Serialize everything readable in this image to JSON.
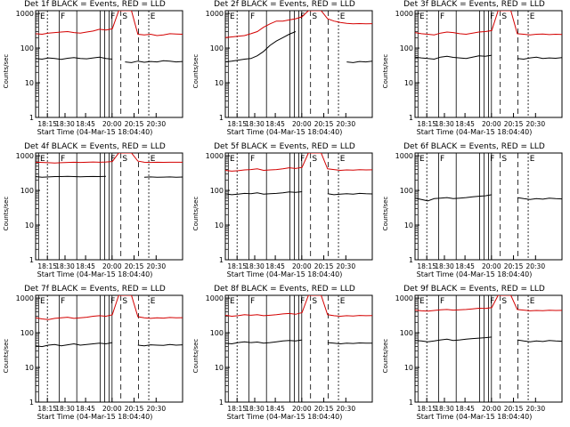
{
  "chart_data": [
    {
      "type": "line",
      "title": "Det 1f BLACK = Events, RED = LLD",
      "xlabel": "Start Time (04-Mar-15 18:04:40)",
      "ylabel": "Counts/sec",
      "x_ticks": [
        "18:15",
        "18:30",
        "18:45",
        "20:00",
        "20:15",
        "20:30"
      ],
      "y_ticks": [
        "1",
        "10",
        "100",
        "1000"
      ],
      "ylim": [
        1,
        1200
      ],
      "yscale": "log",
      "series": [
        {
          "color": "#000000",
          "values": [
            50,
            48,
            52,
            50,
            47,
            51,
            53,
            50,
            49,
            52,
            55,
            50,
            48,
            null,
            40,
            38,
            42,
            39,
            41,
            40,
            43,
            42,
            40,
            41
          ]
        },
        {
          "color": "#d40000",
          "values": [
            260,
            250,
            270,
            280,
            290,
            300,
            280,
            270,
            290,
            310,
            350,
            330,
            360,
            1200,
            1200,
            1200,
            250,
            240,
            250,
            230,
            240,
            260,
            255,
            250
          ]
        }
      ],
      "annotations": [
        "E",
        "F",
        "F",
        "S",
        "E"
      ]
    },
    {
      "type": "line",
      "title": "Det 2f BLACK = Events, RED = LLD",
      "xlabel": "Start Time (04-Mar-15 18:04:40)",
      "ylabel": "Counts/sec",
      "x_ticks": [
        "18:15",
        "18:30",
        "18:45",
        "20:00",
        "20:15",
        "20:30"
      ],
      "y_ticks": [
        "1",
        "10",
        "100",
        "1000"
      ],
      "ylim": [
        1,
        1200
      ],
      "yscale": "log",
      "series": [
        {
          "color": "#000000",
          "values": [
            40,
            42,
            45,
            48,
            50,
            60,
            80,
            120,
            160,
            200,
            250,
            300,
            null,
            null,
            null,
            null,
            null,
            null,
            null,
            40,
            38,
            41,
            40,
            42
          ]
        },
        {
          "color": "#d40000",
          "values": [
            200,
            210,
            220,
            230,
            260,
            300,
            400,
            500,
            600,
            600,
            650,
            700,
            800,
            1200,
            1200,
            1200,
            700,
            600,
            550,
            520,
            500,
            510,
            500,
            505
          ]
        }
      ],
      "annotations": [
        "E",
        "F",
        "F",
        "S",
        "E"
      ]
    },
    {
      "type": "line",
      "title": "Det 3f BLACK = Events, RED = LLD",
      "xlabel": "Start Time (04-Mar-15 18:04:40)",
      "ylabel": "Counts/sec",
      "x_ticks": [
        "18:15",
        "18:30",
        "18:45",
        "20:00",
        "20:15",
        "20:30"
      ],
      "y_ticks": [
        "1",
        "10",
        "100",
        "1000"
      ],
      "ylim": [
        1,
        1200
      ],
      "yscale": "log",
      "series": [
        {
          "color": "#000000",
          "values": [
            55,
            52,
            50,
            48,
            55,
            58,
            54,
            52,
            50,
            55,
            60,
            58,
            62,
            null,
            null,
            null,
            50,
            48,
            52,
            55,
            50,
            52,
            51,
            53
          ]
        },
        {
          "color": "#d40000",
          "values": [
            280,
            260,
            250,
            240,
            270,
            290,
            280,
            260,
            250,
            270,
            290,
            300,
            320,
            1200,
            1200,
            1200,
            260,
            250,
            240,
            250,
            255,
            245,
            250,
            248
          ]
        }
      ],
      "annotations": [
        "E",
        "F",
        "F",
        "S",
        "E"
      ]
    },
    {
      "type": "line",
      "title": "Det 4f BLACK = Events, RED = LLD",
      "xlabel": "Start Time (04-Mar-15 18:04:40)",
      "ylabel": "Counts/sec",
      "x_ticks": [
        "18:15",
        "18:30",
        "18:45",
        "20:00",
        "20:15",
        "20:30"
      ],
      "y_ticks": [
        "1",
        "10",
        "100",
        "1000"
      ],
      "ylim": [
        1,
        1200
      ],
      "yscale": "log",
      "series": [
        {
          "color": "#000000",
          "values": [
            250,
            240,
            245,
            250,
            250,
            255,
            250,
            248,
            250,
            252,
            250,
            255,
            null,
            null,
            null,
            null,
            null,
            240,
            245,
            240,
            242,
            245,
            240,
            243
          ]
        },
        {
          "color": "#d40000",
          "values": [
            650,
            640,
            630,
            620,
            630,
            640,
            650,
            640,
            650,
            660,
            650,
            660,
            680,
            1200,
            1200,
            1200,
            700,
            650,
            640,
            650,
            645,
            650,
            648,
            650
          ]
        }
      ],
      "annotations": [
        "E",
        "F",
        "F",
        "S",
        "E"
      ]
    },
    {
      "type": "line",
      "title": "Det 5f BLACK = Events, RED = LLD",
      "xlabel": "Start Time (04-Mar-15 18:04:40)",
      "ylabel": "Counts/sec",
      "x_ticks": [
        "18:15",
        "18:30",
        "18:45",
        "20:00",
        "20:15",
        "20:30"
      ],
      "y_ticks": [
        "1",
        "10",
        "100",
        "1000"
      ],
      "ylim": [
        1,
        1200
      ],
      "yscale": "log",
      "series": [
        {
          "color": "#000000",
          "values": [
            80,
            75,
            78,
            82,
            80,
            85,
            78,
            80,
            82,
            85,
            90,
            88,
            92,
            null,
            null,
            null,
            80,
            75,
            78,
            80,
            78,
            82,
            80,
            79
          ]
        },
        {
          "color": "#d40000",
          "values": [
            380,
            360,
            370,
            390,
            400,
            420,
            380,
            390,
            400,
            420,
            450,
            430,
            460,
            1200,
            1200,
            1200,
            420,
            400,
            380,
            390,
            385,
            395,
            390,
            392
          ]
        }
      ],
      "annotations": [
        "E",
        "F",
        "F",
        "S",
        "E"
      ]
    },
    {
      "type": "line",
      "title": "Det 6f BLACK = Events, RED = LLD",
      "xlabel": "Start Time (04-Mar-15 18:04:40)",
      "ylabel": "Counts/sec",
      "x_ticks": [
        "18:15",
        "18:30",
        "18:45",
        "20:00",
        "20:15",
        "20:30"
      ],
      "y_ticks": [
        "1",
        "10",
        "100",
        "1000"
      ],
      "ylim": [
        1,
        1200
      ],
      "yscale": "log",
      "series": [
        {
          "color": "#000000",
          "values": [
            60,
            55,
            50,
            58,
            60,
            62,
            58,
            60,
            62,
            65,
            68,
            70,
            75,
            null,
            null,
            null,
            62,
            58,
            55,
            58,
            56,
            60,
            58,
            57
          ]
        }
      ],
      "annotations": [
        "E",
        "F",
        "F",
        "S",
        "E"
      ]
    },
    {
      "type": "line",
      "title": "Det 7f BLACK = Events, RED = LLD",
      "xlabel": "Start Time (04-Mar-15 18:04:40)",
      "ylabel": "Counts/sec",
      "x_ticks": [
        "18:15",
        "18:30",
        "18:45",
        "20:00",
        "20:15",
        "20:30"
      ],
      "y_ticks": [
        "1",
        "10",
        "100",
        "1000"
      ],
      "ylim": [
        1,
        1200
      ],
      "yscale": "log",
      "series": [
        {
          "color": "#000000",
          "values": [
            42,
            40,
            44,
            46,
            42,
            45,
            48,
            44,
            46,
            48,
            50,
            48,
            52,
            null,
            null,
            null,
            44,
            42,
            45,
            44,
            43,
            46,
            44,
            45
          ]
        },
        {
          "color": "#d40000",
          "values": [
            270,
            250,
            240,
            260,
            270,
            280,
            260,
            270,
            280,
            300,
            310,
            300,
            330,
            1200,
            1200,
            1200,
            290,
            270,
            260,
            270,
            265,
            275,
            270,
            272
          ]
        }
      ],
      "annotations": [
        "E",
        "F",
        "F",
        "S",
        "E"
      ]
    },
    {
      "type": "line",
      "title": "Det 8f BLACK = Events, RED = LLD",
      "xlabel": "Start Time (04-Mar-15 18:04:40)",
      "ylabel": "Counts/sec",
      "x_ticks": [
        "18:15",
        "18:30",
        "18:45",
        "20:00",
        "20:15",
        "20:30"
      ],
      "y_ticks": [
        "1",
        "10",
        "100",
        "1000"
      ],
      "ylim": [
        1,
        1200
      ],
      "yscale": "log",
      "series": [
        {
          "color": "#000000",
          "values": [
            50,
            48,
            52,
            55,
            52,
            54,
            50,
            52,
            55,
            58,
            60,
            58,
            62,
            null,
            null,
            null,
            52,
            50,
            48,
            50,
            49,
            51,
            50,
            50
          ]
        },
        {
          "color": "#d40000",
          "values": [
            320,
            300,
            310,
            330,
            320,
            330,
            310,
            320,
            330,
            350,
            360,
            340,
            380,
            1200,
            1200,
            1200,
            330,
            310,
            300,
            310,
            305,
            315,
            310,
            312
          ]
        }
      ],
      "annotations": [
        "E",
        "F",
        "F",
        "S",
        "E"
      ]
    },
    {
      "type": "line",
      "title": "Det 9f BLACK = Events, RED = LLD",
      "xlabel": "Start Time (04-Mar-15 18:04:40)",
      "ylabel": "Counts/sec",
      "x_ticks": [
        "18:15",
        "18:30",
        "18:45",
        "20:00",
        "20:15",
        "20:30"
      ],
      "y_ticks": [
        "1",
        "10",
        "100",
        "1000"
      ],
      "ylim": [
        1,
        1200
      ],
      "yscale": "log",
      "series": [
        {
          "color": "#000000",
          "values": [
            60,
            58,
            55,
            58,
            62,
            65,
            60,
            62,
            65,
            68,
            70,
            72,
            75,
            null,
            null,
            null,
            62,
            58,
            55,
            58,
            56,
            60,
            58,
            57
          ]
        },
        {
          "color": "#d40000",
          "values": [
            450,
            430,
            420,
            440,
            460,
            470,
            450,
            460,
            470,
            490,
            510,
            500,
            530,
            1200,
            1200,
            1200,
            470,
            450,
            430,
            440,
            435,
            445,
            440,
            442
          ]
        }
      ],
      "annotations": [
        "E",
        "F",
        "F",
        "S",
        "E"
      ]
    }
  ]
}
